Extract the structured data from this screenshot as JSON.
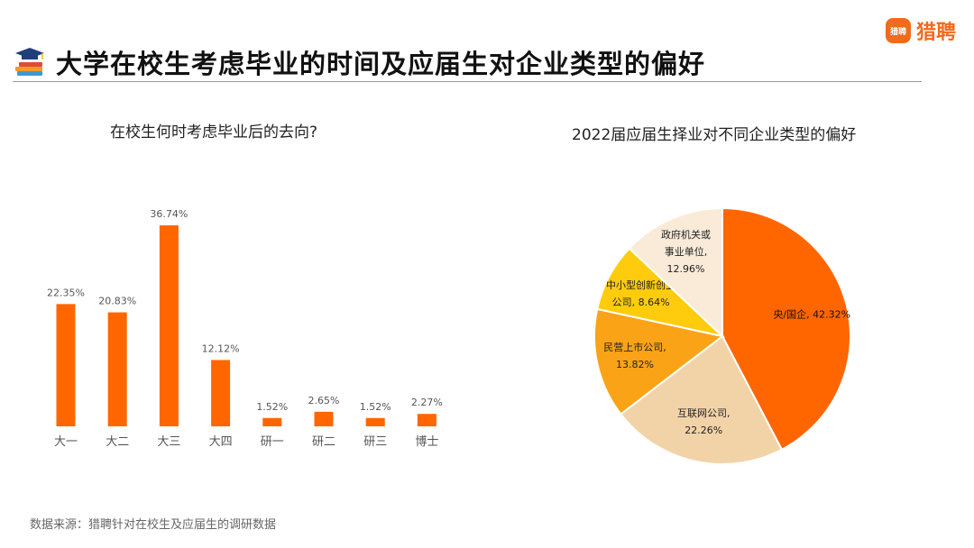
{
  "logo": {
    "mark": "猎聘",
    "text": "猎聘"
  },
  "header": {
    "title": "大学在校生考虑毕业的时间及应届生对企业类型的偏好"
  },
  "source_note": "数据来源：猎聘针对在校生及应届生的调研数据",
  "colors": {
    "bar": "#ff6600",
    "title_rule": "#9a9a9a"
  },
  "chart_data": [
    {
      "type": "bar",
      "title": "在校生何时考虑毕业后的去向?",
      "categories": [
        "大一",
        "大二",
        "大三",
        "大四",
        "研一",
        "研二",
        "研三",
        "博士"
      ],
      "values": [
        22.35,
        20.83,
        36.74,
        12.12,
        1.52,
        2.65,
        1.52,
        2.27
      ],
      "value_labels": [
        "22.35%",
        "20.83%",
        "36.74%",
        "12.12%",
        "1.52%",
        "2.65%",
        "1.52%",
        "2.27%"
      ],
      "ylim": [
        0,
        36.74
      ],
      "xlabel": "",
      "ylabel": "",
      "grid": false
    },
    {
      "type": "pie",
      "title": "2022届应届生择业对不同企业类型的偏好",
      "slices": [
        {
          "label_lines": [
            "央/国企, 42.32%"
          ],
          "value": 42.32,
          "color": "#ff6600",
          "text_color": "#111111"
        },
        {
          "label_lines": [
            "互联网公司,",
            "22.26%"
          ],
          "value": 22.26,
          "color": "#f2d3a8",
          "text_color": "#222222"
        },
        {
          "label_lines": [
            "民营上市公司,",
            "13.82%"
          ],
          "value": 13.82,
          "color": "#fba316",
          "text_color": "#222222"
        },
        {
          "label_lines": [
            "中小型创新创业",
            "公司, 8.64%"
          ],
          "value": 8.64,
          "color": "#ffcc0d",
          "text_color": "#222222"
        },
        {
          "label_lines": [
            "政府机关或",
            "事业单位,",
            "12.96%"
          ],
          "value": 12.96,
          "color": "#faebd9",
          "text_color": "#222222"
        }
      ]
    }
  ]
}
